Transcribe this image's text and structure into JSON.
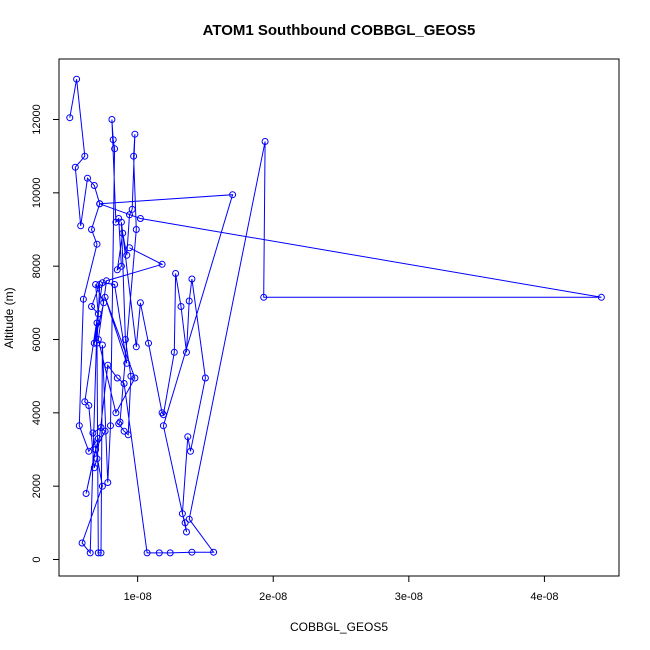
{
  "chart_data": {
    "type": "line",
    "title": "ATOM1 Southbound COBBGL_GEOS5",
    "xlabel": "COBBGL_GEOS5",
    "ylabel": "Altitude (m)",
    "xlim": [
      4.2e-09,
      4.55e-08
    ],
    "ylim": [
      -450,
      13650
    ],
    "x_ticks": [
      {
        "value": 1e-08,
        "label": "1e-08"
      },
      {
        "value": 2e-08,
        "label": "2e-08"
      },
      {
        "value": 3e-08,
        "label": "3e-08"
      },
      {
        "value": 4e-08,
        "label": "4e-08"
      }
    ],
    "y_ticks": [
      {
        "value": 0,
        "label": "0"
      },
      {
        "value": 2000,
        "label": "2000"
      },
      {
        "value": 4000,
        "label": "4000"
      },
      {
        "value": 6000,
        "label": "6000"
      },
      {
        "value": 8000,
        "label": "8000"
      },
      {
        "value": 10000,
        "label": "10000"
      },
      {
        "value": 12000,
        "label": "12000"
      }
    ],
    "grid": false,
    "legend": "none",
    "series": [
      {
        "color": "#0000ff",
        "marker": "open-circle",
        "x": [
          5e-09,
          5.5e-09,
          6.1e-09,
          5.4e-09,
          5.8e-09,
          6.3e-09,
          6.8e-09,
          7.2e-09,
          6.6e-09,
          7e-09,
          6e-09,
          5.7e-09,
          6.4e-09,
          7.1e-09,
          6.2e-09,
          6.9e-09,
          7.6e-09,
          7.3e-09,
          6.7e-09,
          7.4e-09,
          5.9e-09,
          6.5e-09,
          7e-09,
          6.8e-09,
          7.5e-09,
          6.9e-09,
          7.1e-09,
          6.6e-09,
          7.2e-09,
          7e-09,
          7.1e-09,
          7.3e-09,
          7.4e-09,
          7.8e-09,
          8e-09,
          8.3e-09,
          8.2e-09,
          8.1e-09,
          8.4e-09,
          8.6e-09,
          8.8e-09,
          8.5e-09,
          8.9e-09,
          9.2e-09,
          9.4e-09,
          9.6e-09,
          9.8e-09,
          9.7e-09,
          9.9e-09,
          8.7e-09,
          8.6e-09,
          9e-09,
          9.3e-09,
          9.5e-09,
          9.1e-09,
          8.8e-09,
          9.9e-09,
          1.02e-08,
          1.08e-08,
          1.18e-08,
          1.19e-08,
          1.27e-08,
          1.28e-08,
          1.32e-08,
          1.36e-08,
          1.38e-08,
          1.4e-08,
          1.5e-08,
          1.39e-08,
          1.37e-08,
          1.33e-08,
          1.35e-08,
          1.36e-08,
          1.19e-08,
          1.7e-08,
          7.2e-09,
          1.02e-08,
          4.42e-08,
          1.93e-08,
          1.94e-08,
          1.38e-08,
          1.56e-08,
          1.4e-08,
          1.24e-08,
          1.16e-08,
          1.07e-08,
          9e-09,
          8.5e-09,
          7.8e-09,
          7e-09,
          6.8e-09,
          6.4e-09,
          6.1e-09,
          7.4e-09,
          8.3e-09,
          9.2e-09,
          7.6e-09,
          9.8e-09,
          8.4e-09,
          7.1e-09,
          7.7e-09,
          1.18e-08,
          9.4e-09
        ]
      }
    ],
    "y": [
      12050,
      13100,
      11000,
      10700,
      9100,
      10400,
      10200,
      9700,
      9000,
      8600,
      7100,
      3650,
      2950,
      3300,
      1800,
      3000,
      3500,
      3600,
      3450,
      2000,
      450,
      180,
      6450,
      5900,
      7000,
      7500,
      6700,
      6900,
      7500,
      5900,
      180,
      180,
      5850,
      2100,
      3650,
      11200,
      11450,
      12000,
      9200,
      9300,
      8000,
      7900,
      8900,
      8300,
      9400,
      9550,
      11600,
      11000,
      9000,
      3750,
      3700,
      3500,
      3400,
      5000,
      6000,
      9200,
      5800,
      7000,
      5900,
      4000,
      3950,
      5650,
      7800,
      6900,
      5650,
      7050,
      7650,
      4950,
      2950,
      3350,
      1250,
      1000,
      750,
      3650,
      9950,
      9700,
      9300,
      7150,
      7150,
      11400,
      1100,
      200,
      200,
      180,
      180,
      180,
      4800,
      4950,
      5300,
      2750,
      2500,
      4200,
      4300,
      7550,
      7500,
      5350,
      7150,
      4950,
      4000,
      6000,
      7600,
      8050,
      8500
    ]
  }
}
